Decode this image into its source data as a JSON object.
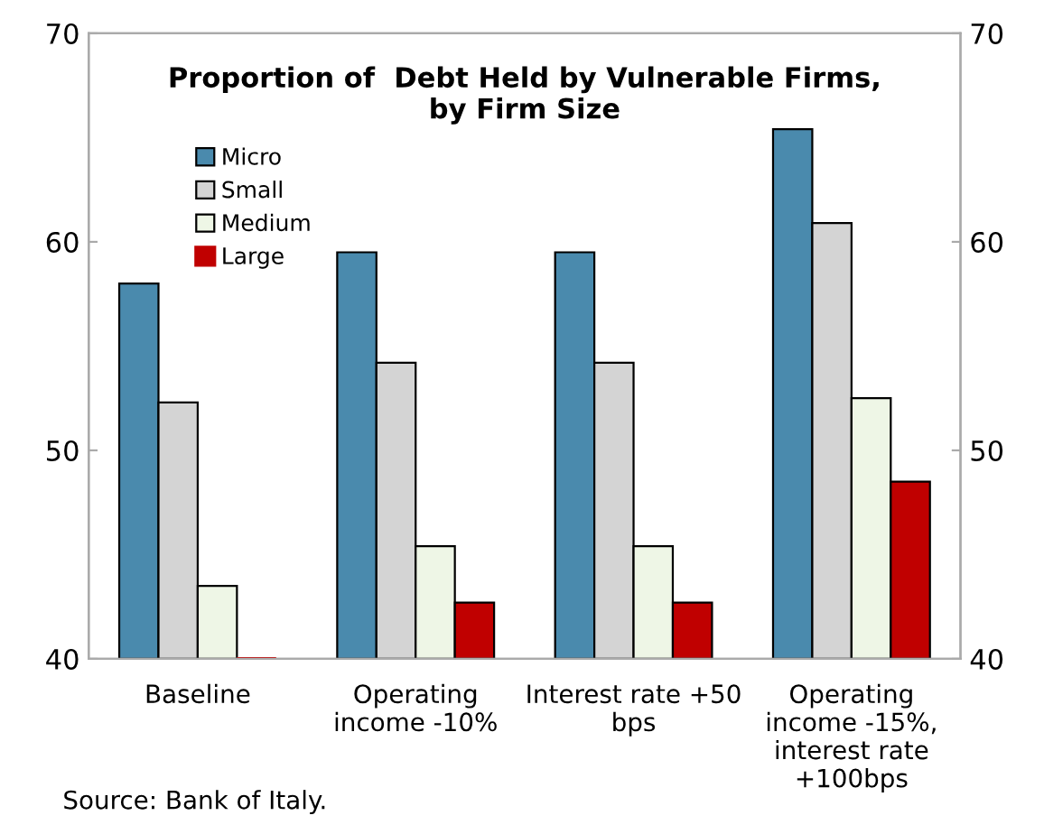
{
  "chart_data": {
    "type": "bar",
    "title": "Proportion of  Debt Held by Vulnerable Firms,\nby Firm Size",
    "categories": [
      "Baseline",
      "Operating\nincome -10%",
      "Interest rate +50\nbps",
      "Operating\nincome -15%,\ninterest rate\n+100bps"
    ],
    "series": [
      {
        "name": "Micro",
        "color": "#4a8aad",
        "values": [
          58.0,
          59.5,
          59.5,
          65.4
        ]
      },
      {
        "name": "Small",
        "color": "#d4d4d4",
        "values": [
          52.3,
          54.2,
          54.2,
          60.9
        ]
      },
      {
        "name": "Medium",
        "color": "#eef6e6",
        "values": [
          43.5,
          45.4,
          45.4,
          52.5
        ]
      },
      {
        "name": "Large",
        "color": "#c00000",
        "values": [
          40.0,
          42.7,
          42.7,
          48.5
        ]
      }
    ],
    "ylim": [
      40,
      70
    ],
    "yticks": [
      40,
      50,
      60,
      70
    ],
    "y2lim": [
      40,
      70
    ],
    "y2ticks": [
      40,
      50,
      60,
      70
    ],
    "grid": false,
    "legend": "top left",
    "annotations": [
      "Source: Bank of Italy."
    ]
  }
}
